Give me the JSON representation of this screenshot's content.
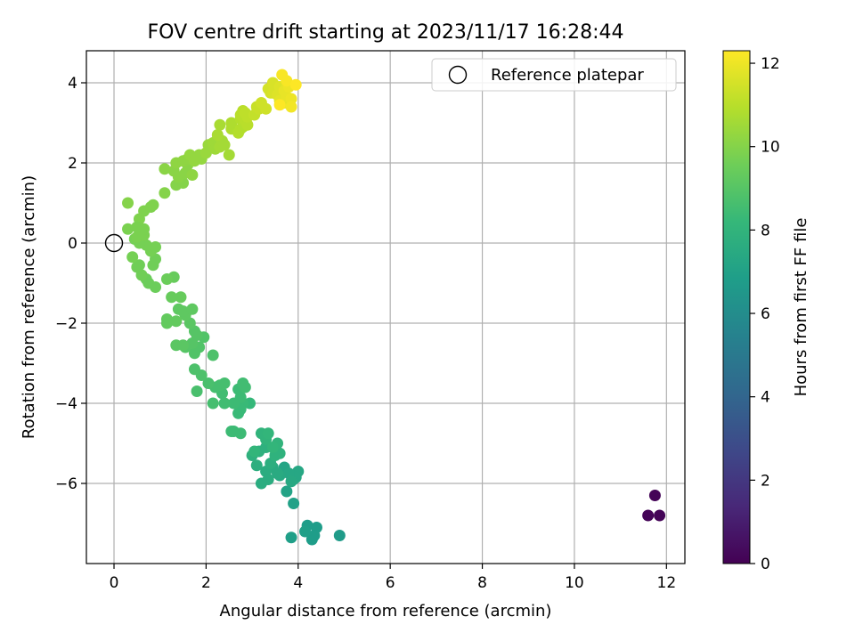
{
  "chart_data": {
    "type": "scatter",
    "title": "FOV centre drift starting at 2023/11/17 16:28:44",
    "xlabel": "Angular distance from reference (arcmin)",
    "ylabel": "Rotation from reference (arcmin)",
    "xlim": [
      -0.6,
      12.4
    ],
    "ylim": [
      -8.0,
      4.8
    ],
    "xticks": [
      0,
      2,
      4,
      6,
      8,
      10,
      12
    ],
    "yticks": [
      -6,
      -4,
      -2,
      0,
      2,
      4
    ],
    "grid": true,
    "legend": {
      "position": "top-right",
      "entries": [
        {
          "label": "Reference platepar",
          "marker": "hollow-circle"
        }
      ]
    },
    "reference_point": {
      "x": 0,
      "y": 0
    },
    "colorbar": {
      "label": "Hours from first FF file",
      "range": [
        0,
        12.3
      ],
      "ticks": [
        0,
        2,
        4,
        6,
        8,
        10,
        12
      ],
      "colormap": "viridis",
      "colormap_stops": [
        "#440154",
        "#482878",
        "#3e4989",
        "#31688e",
        "#26828e",
        "#1f9e89",
        "#35b779",
        "#6ece58",
        "#b5de2b",
        "#fde725"
      ]
    },
    "series": [
      {
        "color_by": "hours",
        "points": [
          [
            11.75,
            -6.3,
            0.1
          ],
          [
            11.6,
            -6.8,
            0.1
          ],
          [
            11.85,
            -6.8,
            0.1
          ],
          [
            4.9,
            -7.3,
            6.7
          ],
          [
            4.4,
            -7.1,
            6.8
          ],
          [
            4.3,
            -7.4,
            6.8
          ],
          [
            4.2,
            -7.05,
            6.8
          ],
          [
            4.35,
            -7.3,
            6.8
          ],
          [
            4.15,
            -7.2,
            6.9
          ],
          [
            3.85,
            -7.35,
            6.9
          ],
          [
            3.9,
            -6.5,
            7.0
          ],
          [
            3.75,
            -6.2,
            7.1
          ],
          [
            3.9,
            -5.9,
            7.2
          ],
          [
            3.7,
            -5.6,
            7.2
          ],
          [
            4.0,
            -5.7,
            7.3
          ],
          [
            3.95,
            -5.85,
            7.3
          ],
          [
            3.8,
            -5.75,
            7.3
          ],
          [
            3.85,
            -5.95,
            7.4
          ],
          [
            3.6,
            -5.8,
            7.4
          ],
          [
            3.55,
            -5.75,
            7.5
          ],
          [
            3.45,
            -5.6,
            7.5
          ],
          [
            3.3,
            -5.7,
            7.6
          ],
          [
            3.2,
            -6.0,
            7.6
          ],
          [
            3.35,
            -5.9,
            7.6
          ],
          [
            3.4,
            -5.5,
            7.7
          ],
          [
            3.1,
            -5.55,
            7.7
          ],
          [
            3.0,
            -5.3,
            7.8
          ],
          [
            3.15,
            -5.2,
            7.8
          ],
          [
            3.3,
            -5.1,
            7.8
          ],
          [
            3.5,
            -5.3,
            7.9
          ],
          [
            3.6,
            -5.25,
            7.9
          ],
          [
            3.55,
            -5.0,
            8.0
          ],
          [
            3.3,
            -4.9,
            8.0
          ],
          [
            3.2,
            -4.75,
            8.0
          ],
          [
            3.35,
            -4.75,
            8.1
          ],
          [
            3.05,
            -5.2,
            8.1
          ],
          [
            3.45,
            -5.1,
            8.1
          ],
          [
            2.95,
            -4.0,
            8.2
          ],
          [
            2.8,
            -4.0,
            8.3
          ],
          [
            2.7,
            -4.25,
            8.3
          ],
          [
            2.75,
            -4.15,
            8.3
          ],
          [
            2.6,
            -4.0,
            8.4
          ],
          [
            2.75,
            -3.85,
            8.4
          ],
          [
            2.7,
            -3.65,
            8.4
          ],
          [
            2.8,
            -3.5,
            8.5
          ],
          [
            2.85,
            -3.6,
            8.5
          ],
          [
            2.75,
            -4.75,
            8.4
          ],
          [
            2.6,
            -4.7,
            8.4
          ],
          [
            2.55,
            -4.7,
            8.4
          ],
          [
            2.4,
            -4.0,
            8.5
          ],
          [
            2.35,
            -3.75,
            8.5
          ],
          [
            2.3,
            -3.55,
            8.6
          ],
          [
            2.4,
            -3.5,
            8.6
          ],
          [
            2.2,
            -3.6,
            8.6
          ],
          [
            2.15,
            -4.0,
            8.6
          ],
          [
            2.05,
            -3.5,
            8.7
          ],
          [
            1.8,
            -3.7,
            8.7
          ],
          [
            1.9,
            -3.3,
            8.8
          ],
          [
            1.75,
            -3.15,
            8.8
          ],
          [
            2.15,
            -2.8,
            8.8
          ],
          [
            1.75,
            -2.75,
            8.9
          ],
          [
            1.85,
            -2.6,
            8.9
          ],
          [
            1.95,
            -2.35,
            8.9
          ],
          [
            1.7,
            -2.5,
            9.0
          ],
          [
            1.8,
            -2.3,
            9.0
          ],
          [
            1.75,
            -2.2,
            9.0
          ],
          [
            1.55,
            -2.6,
            9.0
          ],
          [
            1.35,
            -2.55,
            9.1
          ],
          [
            1.5,
            -2.55,
            9.1
          ],
          [
            1.65,
            -2.0,
            9.1
          ],
          [
            1.55,
            -1.8,
            9.2
          ],
          [
            1.4,
            -1.65,
            9.2
          ],
          [
            1.5,
            -1.7,
            9.2
          ],
          [
            1.7,
            -1.65,
            9.2
          ],
          [
            1.35,
            -1.95,
            9.3
          ],
          [
            1.15,
            -1.9,
            9.3
          ],
          [
            1.15,
            -2.0,
            9.3
          ],
          [
            1.45,
            -1.35,
            9.4
          ],
          [
            1.25,
            -1.35,
            9.4
          ],
          [
            1.3,
            -0.85,
            9.4
          ],
          [
            1.15,
            -0.9,
            9.5
          ],
          [
            0.9,
            -1.1,
            9.5
          ],
          [
            0.7,
            -0.9,
            9.5
          ],
          [
            0.75,
            -1.0,
            9.5
          ],
          [
            0.6,
            -0.8,
            9.6
          ],
          [
            0.5,
            -0.6,
            9.6
          ],
          [
            0.55,
            -0.55,
            9.6
          ],
          [
            0.4,
            -0.35,
            9.7
          ],
          [
            0.85,
            -0.55,
            9.6
          ],
          [
            0.9,
            -0.4,
            9.6
          ],
          [
            0.8,
            -0.2,
            9.7
          ],
          [
            0.9,
            -0.1,
            9.7
          ],
          [
            0.7,
            -0.05,
            9.7
          ],
          [
            0.55,
            0.0,
            9.7
          ],
          [
            0.45,
            0.1,
            9.7
          ],
          [
            0.5,
            0.15,
            9.8
          ],
          [
            0.65,
            0.2,
            9.8
          ],
          [
            0.6,
            0.3,
            9.8
          ],
          [
            0.65,
            0.35,
            9.8
          ],
          [
            0.3,
            0.35,
            9.8
          ],
          [
            0.55,
            0.6,
            9.9
          ],
          [
            0.65,
            0.8,
            9.9
          ],
          [
            0.8,
            0.9,
            9.9
          ],
          [
            0.85,
            0.95,
            9.9
          ],
          [
            0.3,
            1.0,
            10.0
          ],
          [
            0.5,
            0.4,
            9.8
          ],
          [
            1.1,
            1.25,
            10.0
          ],
          [
            1.35,
            1.45,
            10.0
          ],
          [
            1.5,
            1.5,
            10.0
          ],
          [
            1.4,
            1.65,
            10.1
          ],
          [
            1.1,
            1.85,
            10.1
          ],
          [
            1.3,
            1.8,
            10.1
          ],
          [
            1.55,
            1.75,
            10.1
          ],
          [
            1.6,
            1.95,
            10.1
          ],
          [
            1.7,
            1.7,
            10.2
          ],
          [
            1.35,
            2.0,
            10.2
          ],
          [
            1.5,
            2.05,
            10.2
          ],
          [
            1.6,
            2.1,
            10.2
          ],
          [
            1.65,
            2.2,
            10.3
          ],
          [
            1.75,
            2.05,
            10.3
          ],
          [
            1.85,
            2.2,
            10.3
          ],
          [
            1.9,
            2.1,
            10.3
          ],
          [
            1.8,
            2.15,
            10.3
          ],
          [
            2.0,
            2.25,
            10.4
          ],
          [
            2.05,
            2.45,
            10.4
          ],
          [
            2.15,
            2.5,
            10.5
          ],
          [
            2.2,
            2.35,
            10.5
          ],
          [
            2.25,
            2.6,
            10.5
          ],
          [
            2.3,
            2.4,
            10.6
          ],
          [
            2.35,
            2.55,
            10.6
          ],
          [
            2.4,
            2.45,
            10.6
          ],
          [
            2.5,
            2.2,
            10.6
          ],
          [
            2.25,
            2.7,
            10.7
          ],
          [
            2.3,
            2.95,
            10.7
          ],
          [
            2.55,
            2.85,
            10.8
          ],
          [
            2.55,
            3.0,
            10.8
          ],
          [
            2.7,
            2.75,
            10.9
          ],
          [
            2.75,
            2.85,
            10.9
          ],
          [
            2.75,
            3.1,
            10.9
          ],
          [
            2.8,
            2.9,
            10.9
          ],
          [
            2.75,
            3.2,
            11.0
          ],
          [
            2.85,
            3.05,
            11.0
          ],
          [
            2.9,
            2.95,
            11.0
          ],
          [
            2.8,
            3.3,
            11.0
          ],
          [
            2.9,
            3.15,
            11.1
          ],
          [
            2.85,
            3.25,
            11.1
          ],
          [
            3.05,
            3.2,
            11.2
          ],
          [
            3.1,
            3.4,
            11.3
          ],
          [
            3.15,
            3.35,
            11.3
          ],
          [
            3.2,
            3.5,
            11.4
          ],
          [
            3.3,
            3.35,
            11.4
          ],
          [
            3.35,
            3.85,
            11.5
          ],
          [
            3.4,
            3.75,
            11.5
          ],
          [
            3.45,
            4.0,
            11.6
          ],
          [
            3.45,
            3.75,
            11.6
          ],
          [
            3.55,
            3.7,
            11.7
          ],
          [
            3.6,
            3.9,
            11.7
          ],
          [
            3.6,
            3.55,
            11.8
          ],
          [
            3.7,
            3.5,
            11.8
          ],
          [
            3.75,
            3.65,
            11.9
          ],
          [
            3.7,
            3.8,
            11.9
          ],
          [
            3.8,
            3.9,
            12.0
          ],
          [
            3.85,
            3.6,
            12.0
          ],
          [
            3.85,
            3.4,
            12.1
          ],
          [
            3.65,
            4.2,
            12.2
          ],
          [
            3.75,
            4.05,
            12.2
          ],
          [
            3.95,
            3.95,
            12.3
          ],
          [
            3.6,
            3.45,
            12.3
          ]
        ]
      }
    ]
  }
}
